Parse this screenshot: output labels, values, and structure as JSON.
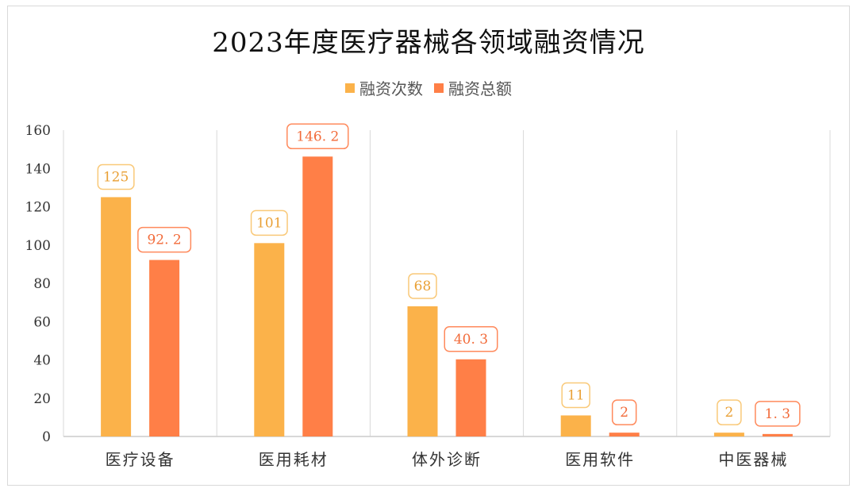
{
  "chart_data": {
    "type": "bar",
    "title": "2023年度医疗器械各领域融资情况",
    "categories": [
      "医疗设备",
      "医用耗材",
      "体外诊断",
      "医用软件",
      "中医器械"
    ],
    "series": [
      {
        "name": "融资次数",
        "values": [
          125,
          101,
          68,
          11,
          2
        ],
        "labels": [
          "125",
          "101",
          "68",
          "11",
          "2"
        ],
        "color": "#FBB24A",
        "label_border": "#F9C979",
        "label_text": "#E9A035"
      },
      {
        "name": "融资总额",
        "values": [
          92.2,
          146.2,
          40.3,
          2,
          1.3
        ],
        "labels": [
          "92. 2",
          "146. 2",
          "40. 3",
          "2",
          "1. 3"
        ],
        "color": "#FF7F47",
        "label_border": "#FF8A5C",
        "label_text": "#F26B3A"
      }
    ],
    "ylim": [
      0,
      160
    ],
    "yticks": [
      "0",
      "20",
      "40",
      "60",
      "80",
      "100",
      "120",
      "140",
      "160"
    ],
    "grid": "vertical category separators",
    "legend_position": "top-center",
    "xlabel": "",
    "ylabel": ""
  }
}
